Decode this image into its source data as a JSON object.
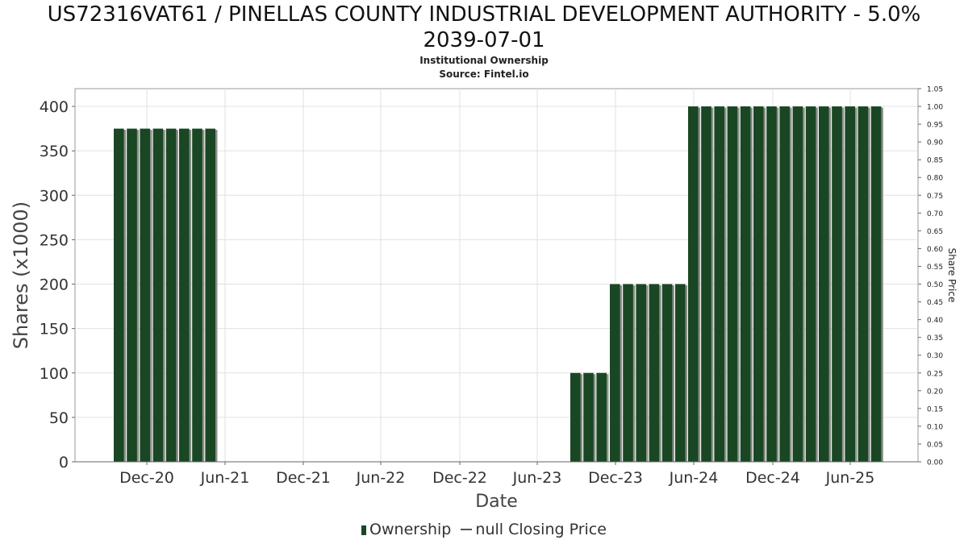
{
  "chart_data": {
    "type": "bar",
    "title_lines": [
      "US72316VAT61 / PINELLAS COUNTY INDUSTRIAL DEVELOPMENT AUTHORITY - 5.0%",
      "2039-07-01"
    ],
    "subtitle": "Institutional Ownership",
    "source": "Source: Fintel.io",
    "xlabel": "Date",
    "ylabel": "Shares (x1000)",
    "y2label": "Share Price",
    "ylim": [
      0,
      420
    ],
    "y2lim": [
      0,
      1.05
    ],
    "yticks": [
      "0",
      "50",
      "100",
      "150",
      "200",
      "250",
      "300",
      "350",
      "400"
    ],
    "y2ticks": [
      "0.00",
      "0.05",
      "0.10",
      "0.15",
      "0.20",
      "0.25",
      "0.30",
      "0.35",
      "0.40",
      "0.45",
      "0.50",
      "0.55",
      "0.60",
      "0.65",
      "0.70",
      "0.75",
      "0.80",
      "0.85",
      "0.90",
      "0.95",
      "1.00",
      "1.05"
    ],
    "xticks": [
      "Dec-20",
      "Jun-21",
      "Dec-21",
      "Jun-22",
      "Dec-22",
      "Jun-23",
      "Dec-23",
      "Jun-24",
      "Dec-24",
      "Jun-25"
    ],
    "grid": true,
    "legend_position": "bottom",
    "series": [
      {
        "name": "Ownership",
        "color": "#1a4723",
        "values": [
          375,
          375,
          375,
          375,
          375,
          375,
          375,
          375,
          100,
          100,
          100,
          200,
          200,
          200,
          200,
          200,
          200,
          400,
          400,
          400,
          400,
          400,
          400,
          400,
          400,
          400,
          400,
          400,
          400,
          400,
          400,
          400
        ]
      }
    ],
    "legend": [
      {
        "label": "Ownership",
        "kind": "bar"
      },
      {
        "label": "null Closing Price",
        "kind": "line"
      }
    ]
  }
}
